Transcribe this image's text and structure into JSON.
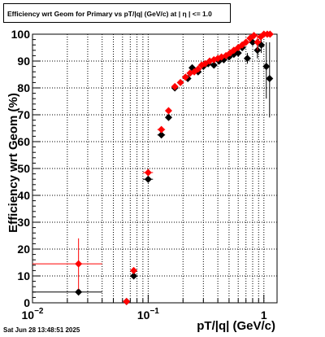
{
  "chart_data": {
    "type": "scatter",
    "title": "Efficiency wrt Geom for Primary vs pT/|q| (GeV/c) at |  η  | <= 1.0",
    "xlabel": "pT/|q| (GeV/c)",
    "ylabel": "Efficiency wrt Geom (%)",
    "xscale": "log",
    "xlim": [
      0.01,
      1.3
    ],
    "ylim": [
      0,
      100
    ],
    "grid": true,
    "x_ticks": [
      {
        "label": "10",
        "exp": "−2",
        "value": 0.01
      },
      {
        "label": "10",
        "exp": "−1",
        "value": 0.1
      },
      {
        "label": "1",
        "exp": "",
        "value": 1
      }
    ],
    "y_ticks": [
      "0",
      "10",
      "20",
      "30",
      "40",
      "50",
      "60",
      "70",
      "80",
      "90",
      "100"
    ],
    "series": [
      {
        "color": "#000000",
        "marker": "diamond",
        "points": [
          {
            "x": 0.025,
            "y": 4,
            "xlo": 0.01,
            "xhi": 0.04,
            "ylo": 4,
            "yhi": 4
          },
          {
            "x": 0.065,
            "y": 0.5,
            "xlo": 0.065,
            "xhi": 0.065,
            "ylo": 0.5,
            "yhi": 0.5
          },
          {
            "x": 0.075,
            "y": 10,
            "xlo": 0.072,
            "xhi": 0.078,
            "ylo": 10,
            "yhi": 10
          },
          {
            "x": 0.1,
            "y": 46,
            "xlo": 0.09,
            "xhi": 0.11,
            "ylo": 46,
            "yhi": 46
          },
          {
            "x": 0.13,
            "y": 62.5,
            "xlo": 0.12,
            "xhi": 0.14,
            "ylo": 62.5,
            "yhi": 62.5
          },
          {
            "x": 0.15,
            "y": 69,
            "xlo": 0.15,
            "xhi": 0.15,
            "ylo": 69,
            "yhi": 69
          },
          {
            "x": 0.17,
            "y": 80,
            "xlo": 0.17,
            "xhi": 0.17,
            "ylo": 80,
            "yhi": 80
          },
          {
            "x": 0.22,
            "y": 83.5,
            "xlo": 0.22,
            "xhi": 0.22,
            "ylo": 83.5,
            "yhi": 83.5
          },
          {
            "x": 0.24,
            "y": 87.5,
            "xlo": 0.24,
            "xhi": 0.24,
            "ylo": 87.5,
            "yhi": 87.5
          },
          {
            "x": 0.27,
            "y": 86,
            "xlo": 0.27,
            "xhi": 0.27,
            "ylo": 86,
            "yhi": 86
          },
          {
            "x": 0.3,
            "y": 88,
            "xlo": 0.3,
            "xhi": 0.3,
            "ylo": 88,
            "yhi": 88
          },
          {
            "x": 0.33,
            "y": 89,
            "xlo": 0.33,
            "xhi": 0.33,
            "ylo": 89,
            "yhi": 89
          },
          {
            "x": 0.37,
            "y": 88.5,
            "xlo": 0.37,
            "xhi": 0.37,
            "ylo": 88.5,
            "yhi": 88.5
          },
          {
            "x": 0.41,
            "y": 90,
            "xlo": 0.41,
            "xhi": 0.41,
            "ylo": 90,
            "yhi": 90
          },
          {
            "x": 0.45,
            "y": 90.5,
            "xlo": 0.45,
            "xhi": 0.45,
            "ylo": 90.5,
            "yhi": 90.5
          },
          {
            "x": 0.5,
            "y": 91.5,
            "xlo": 0.5,
            "xhi": 0.5,
            "ylo": 91.5,
            "yhi": 91.5
          },
          {
            "x": 0.55,
            "y": 92.5,
            "xlo": 0.55,
            "xhi": 0.55,
            "ylo": 92.5,
            "yhi": 92.5
          },
          {
            "x": 0.6,
            "y": 93,
            "xlo": 0.6,
            "xhi": 0.6,
            "ylo": 93,
            "yhi": 93
          },
          {
            "x": 0.65,
            "y": 95,
            "xlo": 0.65,
            "xhi": 0.65,
            "ylo": 95,
            "yhi": 95
          },
          {
            "x": 0.72,
            "y": 91,
            "xlo": 0.72,
            "xhi": 0.72,
            "ylo": 89,
            "yhi": 93
          },
          {
            "x": 0.8,
            "y": 97,
            "xlo": 0.8,
            "xhi": 0.8,
            "ylo": 96,
            "yhi": 98
          },
          {
            "x": 0.88,
            "y": 94,
            "xlo": 0.88,
            "xhi": 0.88,
            "ylo": 91,
            "yhi": 97
          },
          {
            "x": 0.95,
            "y": 96,
            "xlo": 0.95,
            "xhi": 0.95,
            "ylo": 93,
            "yhi": 99
          },
          {
            "x": 1.05,
            "y": 88,
            "xlo": 1.05,
            "xhi": 1.05,
            "ylo": 76,
            "yhi": 97
          },
          {
            "x": 1.12,
            "y": 83.5,
            "xlo": 1.12,
            "xhi": 1.12,
            "ylo": 69,
            "yhi": 97
          }
        ]
      },
      {
        "color": "#ff0000",
        "marker": "diamond",
        "points": [
          {
            "x": 0.025,
            "y": 14.5,
            "xlo": 0.01,
            "xhi": 0.04,
            "ylo": 5,
            "yhi": 24
          },
          {
            "x": 0.065,
            "y": 0.5,
            "xlo": 0.065,
            "xhi": 0.065,
            "ylo": 0.5,
            "yhi": 0.5
          },
          {
            "x": 0.075,
            "y": 12,
            "xlo": 0.072,
            "xhi": 0.078,
            "ylo": 12,
            "yhi": 12
          },
          {
            "x": 0.1,
            "y": 48.5,
            "xlo": 0.09,
            "xhi": 0.11,
            "ylo": 48.5,
            "yhi": 48.5
          },
          {
            "x": 0.13,
            "y": 64.5,
            "xlo": 0.12,
            "xhi": 0.14,
            "ylo": 64.5,
            "yhi": 64.5
          },
          {
            "x": 0.15,
            "y": 71.5,
            "xlo": 0.15,
            "xhi": 0.15,
            "ylo": 71.5,
            "yhi": 71.5
          },
          {
            "x": 0.17,
            "y": 80.5,
            "xlo": 0.17,
            "xhi": 0.17,
            "ylo": 80.5,
            "yhi": 80.5
          },
          {
            "x": 0.19,
            "y": 82,
            "xlo": 0.19,
            "xhi": 0.19,
            "ylo": 82,
            "yhi": 82
          },
          {
            "x": 0.21,
            "y": 84,
            "xlo": 0.21,
            "xhi": 0.21,
            "ylo": 84,
            "yhi": 84
          },
          {
            "x": 0.23,
            "y": 85.5,
            "xlo": 0.23,
            "xhi": 0.23,
            "ylo": 85.5,
            "yhi": 85.5
          },
          {
            "x": 0.25,
            "y": 86,
            "xlo": 0.25,
            "xhi": 0.25,
            "ylo": 86,
            "yhi": 86
          },
          {
            "x": 0.27,
            "y": 87,
            "xlo": 0.27,
            "xhi": 0.27,
            "ylo": 87,
            "yhi": 87
          },
          {
            "x": 0.29,
            "y": 88.5,
            "xlo": 0.29,
            "xhi": 0.29,
            "ylo": 88.5,
            "yhi": 88.5
          },
          {
            "x": 0.31,
            "y": 89,
            "xlo": 0.31,
            "xhi": 0.31,
            "ylo": 89,
            "yhi": 89
          },
          {
            "x": 0.34,
            "y": 90,
            "xlo": 0.34,
            "xhi": 0.34,
            "ylo": 90,
            "yhi": 90
          },
          {
            "x": 0.37,
            "y": 90.5,
            "xlo": 0.37,
            "xhi": 0.37,
            "ylo": 90.5,
            "yhi": 90.5
          },
          {
            "x": 0.4,
            "y": 91,
            "xlo": 0.4,
            "xhi": 0.4,
            "ylo": 91,
            "yhi": 91
          },
          {
            "x": 0.43,
            "y": 91.5,
            "xlo": 0.43,
            "xhi": 0.43,
            "ylo": 91.5,
            "yhi": 91.5
          },
          {
            "x": 0.47,
            "y": 92,
            "xlo": 0.47,
            "xhi": 0.47,
            "ylo": 92,
            "yhi": 92
          },
          {
            "x": 0.51,
            "y": 93,
            "xlo": 0.51,
            "xhi": 0.51,
            "ylo": 93,
            "yhi": 93
          },
          {
            "x": 0.55,
            "y": 94,
            "xlo": 0.55,
            "xhi": 0.55,
            "ylo": 94,
            "yhi": 94
          },
          {
            "x": 0.6,
            "y": 95,
            "xlo": 0.6,
            "xhi": 0.6,
            "ylo": 95,
            "yhi": 95
          },
          {
            "x": 0.65,
            "y": 96,
            "xlo": 0.65,
            "xhi": 0.65,
            "ylo": 96,
            "yhi": 96
          },
          {
            "x": 0.7,
            "y": 97,
            "xlo": 0.7,
            "xhi": 0.7,
            "ylo": 96,
            "yhi": 98
          },
          {
            "x": 0.76,
            "y": 98.5,
            "xlo": 0.76,
            "xhi": 0.76,
            "ylo": 97,
            "yhi": 100
          },
          {
            "x": 0.82,
            "y": 99.5,
            "xlo": 0.82,
            "xhi": 0.82,
            "ylo": 98.5,
            "yhi": 100
          },
          {
            "x": 0.88,
            "y": 97,
            "xlo": 0.88,
            "xhi": 0.88,
            "ylo": 94,
            "yhi": 100
          },
          {
            "x": 0.94,
            "y": 99,
            "xlo": 0.94,
            "xhi": 0.94,
            "ylo": 97,
            "yhi": 100
          },
          {
            "x": 1.0,
            "y": 100,
            "xlo": 1.0,
            "xhi": 1.0,
            "ylo": 100,
            "yhi": 100
          },
          {
            "x": 1.07,
            "y": 100,
            "xlo": 1.07,
            "xhi": 1.07,
            "ylo": 100,
            "yhi": 100
          },
          {
            "x": 1.13,
            "y": 100,
            "xlo": 1.13,
            "xhi": 1.13,
            "ylo": 100,
            "yhi": 100
          }
        ]
      }
    ]
  },
  "timestamp": "Sat Jun 28 13:48:51 2025"
}
